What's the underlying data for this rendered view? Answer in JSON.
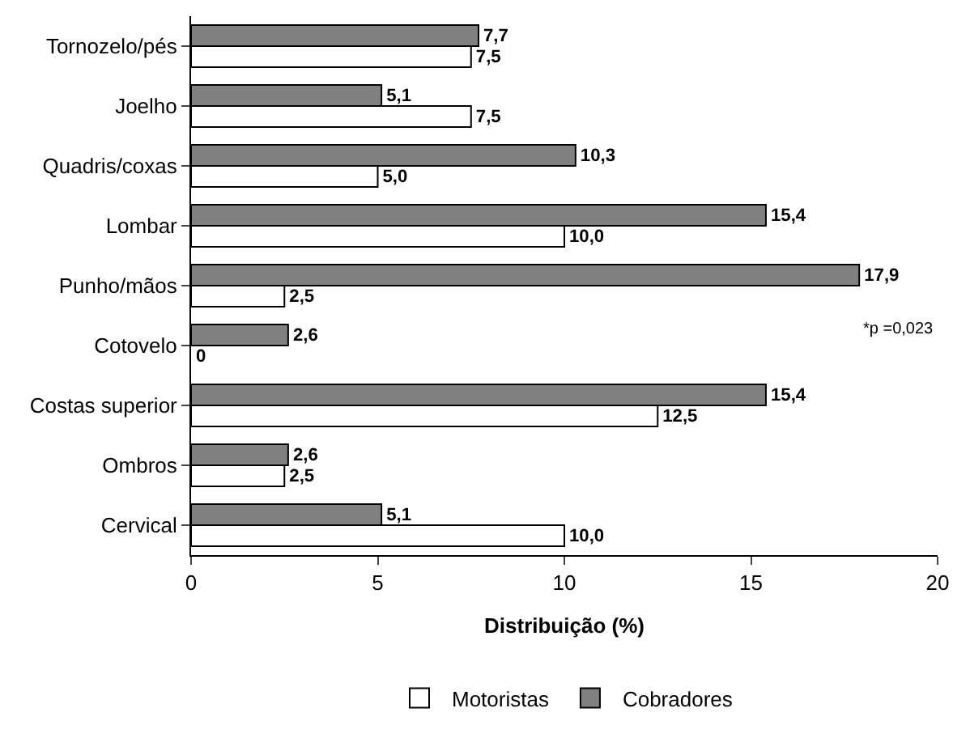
{
  "chart_data": {
    "type": "bar",
    "orientation": "horizontal",
    "xlabel": "Distribuição (%)",
    "categories": [
      "Tornozelo/pés",
      "Joelho",
      "Quadris/coxas",
      "Lombar",
      "Punho/mãos",
      "Cotovelo",
      "Costas superior",
      "Ombros",
      "Cervical"
    ],
    "series": [
      {
        "name": "Cobradores",
        "color": "#808080",
        "values": [
          7.7,
          5.1,
          10.3,
          15.4,
          17.9,
          2.6,
          15.4,
          2.6,
          5.1
        ],
        "value_labels": [
          "7,7",
          "5,1",
          "10,3",
          "15,4",
          "17,9",
          "2,6",
          "15,4",
          "2,6",
          "5,1"
        ]
      },
      {
        "name": "Motoristas",
        "color": "#ffffff",
        "values": [
          7.5,
          7.5,
          5.0,
          10.0,
          2.5,
          0,
          12.5,
          2.5,
          10.0
        ],
        "value_labels": [
          "7,5",
          "7,5",
          "5,0",
          "10,0",
          "2,5",
          "0",
          "12,5",
          "2,5",
          "10,0"
        ]
      }
    ],
    "xlim": [
      0,
      20
    ],
    "xticks": [
      0,
      5,
      10,
      15,
      20
    ],
    "legend": "bottom",
    "annotations": [
      "*p =0,023"
    ]
  }
}
